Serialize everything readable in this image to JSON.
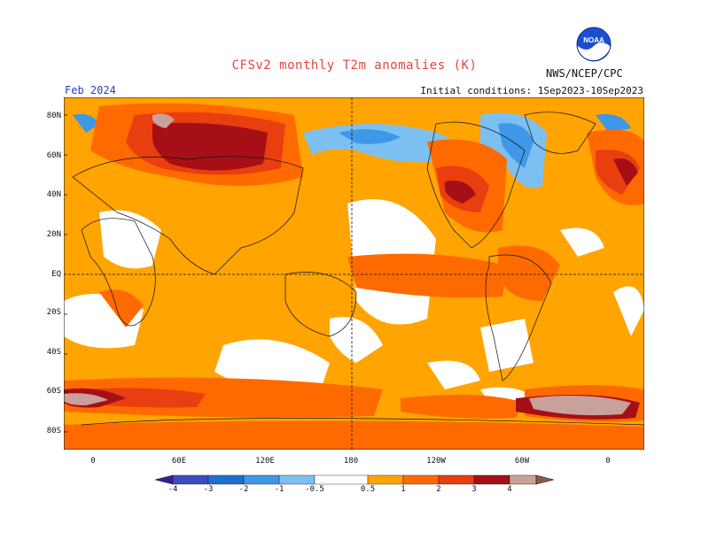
{
  "title": "CFSv2 monthly T2m anomalies (K)",
  "agency": "NWS/NCEP/CPC",
  "logo_text": "NOAA",
  "period": "Feb 2024",
  "initial_conditions": "Initial conditions: 1Sep2023-10Sep2023",
  "lat_labels": [
    "80N",
    "60N",
    "40N",
    "20N",
    "EQ",
    "20S",
    "40S",
    "60S",
    "80S"
  ],
  "lon_labels": [
    "0",
    "60E",
    "120E",
    "180",
    "120W",
    "60W",
    "0"
  ],
  "colorbar": {
    "labels": [
      "-4",
      "-3",
      "-2",
      "-1",
      "-0.5",
      "0.5",
      "1",
      "2",
      "3",
      "4"
    ],
    "colors": [
      "#3a1c9a",
      "#3b4cc0",
      "#1f6fd1",
      "#3f97e8",
      "#7cc0f2",
      "#ffffff",
      "#ffa400",
      "#ff6a00",
      "#e83e10",
      "#a50f15",
      "#c9a09a",
      "#8b5a4a"
    ]
  },
  "legend_colors": {
    "very_cold": "#3b4cc0",
    "cold": "#3f97e8",
    "neutral": "#ffffff",
    "warm": "#ffa400",
    "warmer": "#ff6a00",
    "hot": "#a50f15",
    "extreme": "#c9a09a"
  }
}
